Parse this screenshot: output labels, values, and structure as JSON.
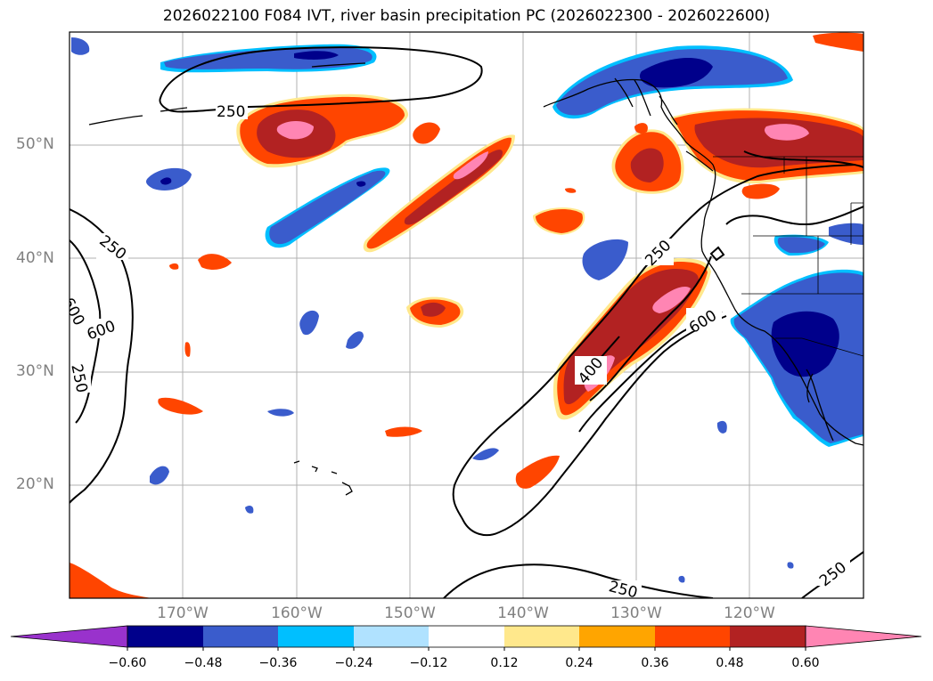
{
  "title": "2026022100 F084 IVT, river basin precipitation PC (2026022300 - 2026022600)",
  "axes": {
    "lat_labels": [
      "20°N",
      "30°N",
      "40°N",
      "50°N"
    ],
    "lon_labels": [
      "170°W",
      "160°W",
      "150°W",
      "140°W",
      "130°W",
      "120°W"
    ]
  },
  "ivt_contours": {
    "levels": [
      "250",
      "400",
      "600"
    ],
    "labels": [
      "250",
      "250",
      "250",
      "600",
      "250",
      "400",
      "600",
      "250",
      "250",
      "600"
    ]
  },
  "colorbar": {
    "ticks": [
      "−0.60",
      "−0.48",
      "−0.36",
      "−0.24",
      "−0.12",
      "0.12",
      "0.24",
      "0.36",
      "0.48",
      "0.60"
    ],
    "colors": [
      "#9932cc",
      "#00008b",
      "#3a5ccc",
      "#00bfff",
      "#b0e2ff",
      "#ffffff",
      "#ffe88c",
      "#ffa500",
      "#ff4500",
      "#b22222",
      "#ff85b3"
    ]
  },
  "palette": {
    "neg_dark": "#00008b",
    "neg_mid": "#3a5ccc",
    "neg_light": "#00bfff",
    "neg_pale": "#b0e2ff",
    "pos_pale": "#ffe88c",
    "pos_orange": "#ffa500",
    "pos_redorange": "#ff4500",
    "pos_firebrick": "#b22222",
    "pos_pink": "#ff85b3"
  }
}
